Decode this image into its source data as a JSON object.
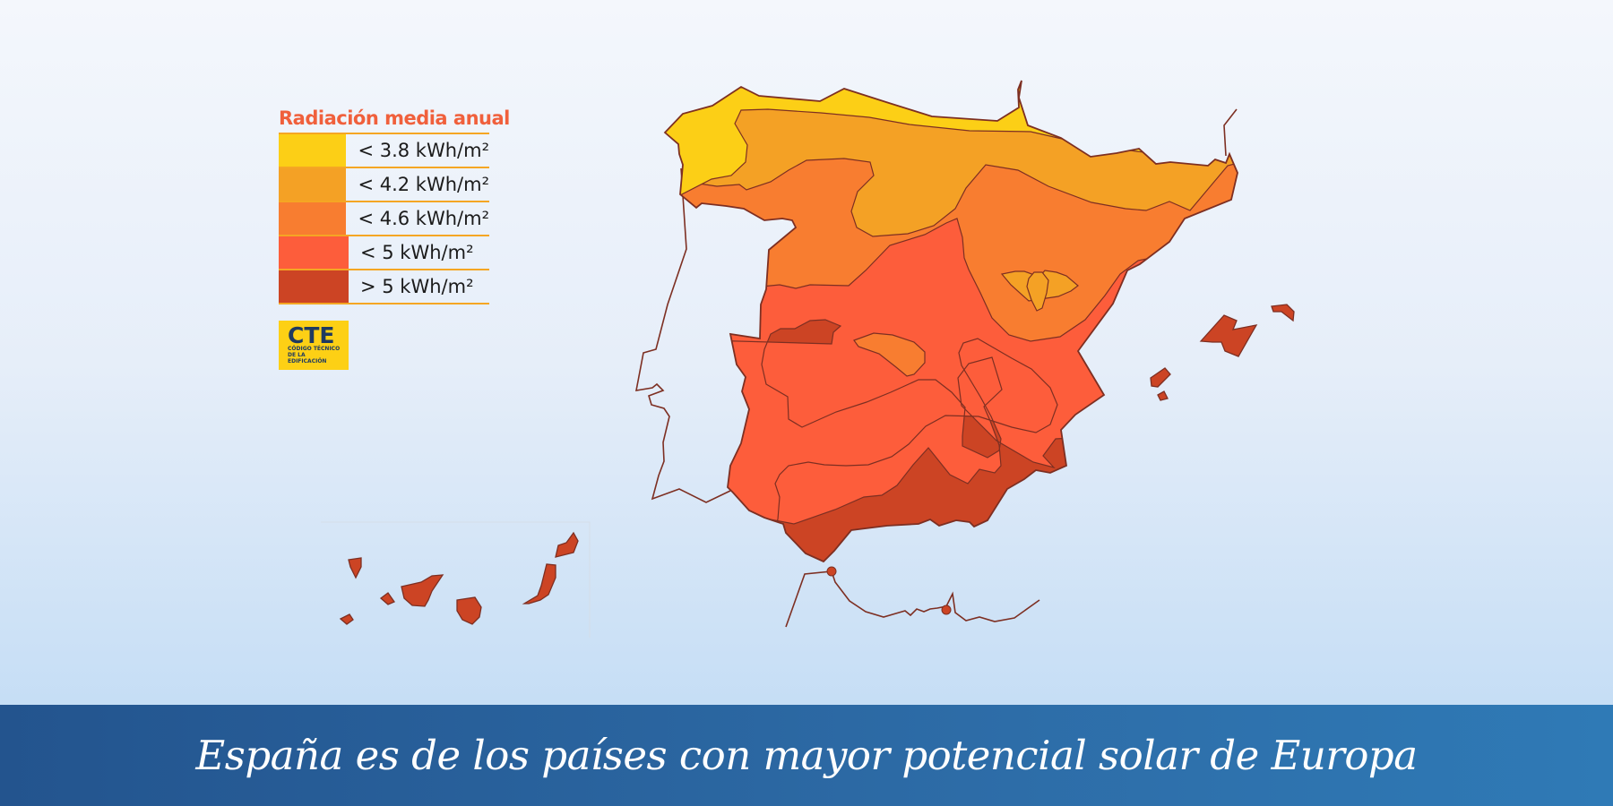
{
  "legend": {
    "title": "Radiación media anual",
    "items": [
      {
        "label": "< 3.8 kWh/m²",
        "color": "#fccf16"
      },
      {
        "label": "< 4.2 kWh/m²",
        "color": "#f4a125"
      },
      {
        "label": "< 4.6 kWh/m²",
        "color": "#f87d30"
      },
      {
        "label": "< 5 kWh/m²",
        "color": "#fd5d3b"
      },
      {
        "label": "> 5 kWh/m²",
        "color": "#cc4424"
      }
    ]
  },
  "logo": {
    "title": "CTE",
    "subtitle_line1": "CÓDIGO TÉCNICO",
    "subtitle_line2": "DE LA EDIFICACIÓN",
    "color": "#fdd015"
  },
  "caption": {
    "text": "España es de los países con mayor potencial solar de Europa"
  },
  "colors": {
    "border": "#7d2f22",
    "islands": "#cc4424",
    "zone_3_8": "#fccf16",
    "zone_4_2": "#f4a125",
    "zone_4_6": "#f87d30",
    "zone_5": "#fd5d3b",
    "zone_over_5": "#cc4424"
  }
}
